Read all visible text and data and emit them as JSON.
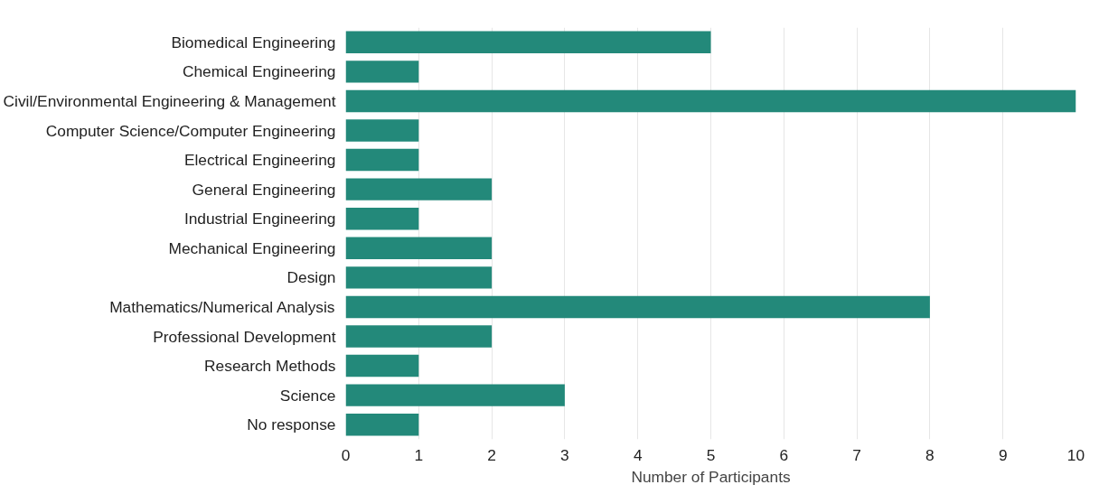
{
  "chart_data": {
    "type": "bar",
    "orientation": "horizontal",
    "xlabel": "Number of Participants",
    "categories": [
      "Biomedical Engineering",
      "Chemical Engineering",
      "Civil/Environmental Engineering & Management",
      "Computer Science/Computer Engineering",
      "Electrical Engineering",
      "General Engineering",
      "Industrial Engineering",
      "Mechanical Engineering",
      "Design",
      "Mathematics/Numerical Analysis",
      "Professional Development",
      "Research Methods",
      "Science",
      "No response"
    ],
    "values": [
      5,
      1,
      10,
      1,
      1,
      2,
      1,
      2,
      2,
      8,
      2,
      1,
      3,
      1
    ],
    "color": "#23897a",
    "xlim": [
      0,
      10
    ],
    "xticks": [
      0,
      1,
      2,
      3,
      4,
      5,
      6,
      7,
      8,
      9,
      10
    ],
    "grid": "x"
  }
}
